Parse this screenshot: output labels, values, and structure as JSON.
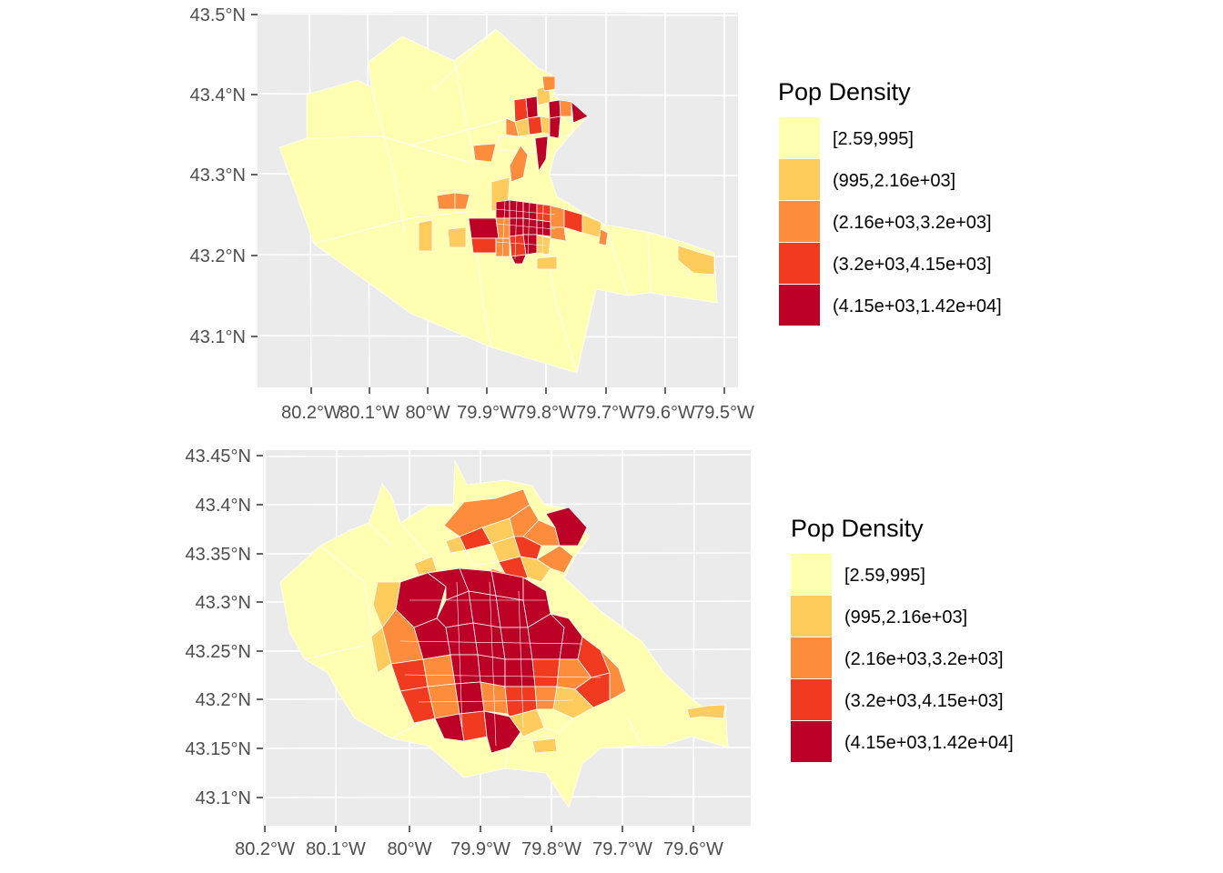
{
  "maps": [
    {
      "id": "top",
      "y_ticks": [
        "43.5°N",
        "43.4°N",
        "43.3°N",
        "43.2°N",
        "43.1°N"
      ],
      "x_ticks": [
        "80.2°W",
        "80.1°W",
        "80°W",
        "79.9°W",
        "79.8°W",
        "79.7°W",
        "79.6°W",
        "79.5°W"
      ],
      "legend": {
        "title": "Pop Density",
        "items": [
          {
            "label": "[2.59,995]",
            "color": "#FFFFB2"
          },
          {
            "label": "(995,2.16e+03]",
            "color": "#FECC5C"
          },
          {
            "label": "(2.16e+03,3.2e+03]",
            "color": "#FD8D3C"
          },
          {
            "label": "(3.2e+03,4.15e+03]",
            "color": "#F03B20"
          },
          {
            "label": "(4.15e+03,1.42e+04]",
            "color": "#BD0026"
          }
        ]
      }
    },
    {
      "id": "bottom",
      "y_ticks": [
        "43.45°N",
        "43.4°N",
        "43.35°N",
        "43.3°N",
        "43.25°N",
        "43.2°N",
        "43.15°N",
        "43.1°N"
      ],
      "x_ticks": [
        "80.2°W",
        "80.1°W",
        "80°W",
        "79.9°W",
        "79.8°W",
        "79.7°W",
        "79.6°W"
      ],
      "legend": {
        "title": "Pop Density",
        "items": [
          {
            "label": "[2.59,995]",
            "color": "#FFFFB2"
          },
          {
            "label": "(995,2.16e+03]",
            "color": "#FECC5C"
          },
          {
            "label": "(2.16e+03,3.2e+03]",
            "color": "#FD8D3C"
          },
          {
            "label": "(3.2e+03,4.15e+03]",
            "color": "#F03B20"
          },
          {
            "label": "(4.15e+03,1.42e+04]",
            "color": "#BD0026"
          }
        ]
      }
    }
  ],
  "colors": {
    "panel_bg": "#EBEBEB",
    "grid": "#FFFFFF",
    "axis_text": "#4D4D4D"
  }
}
